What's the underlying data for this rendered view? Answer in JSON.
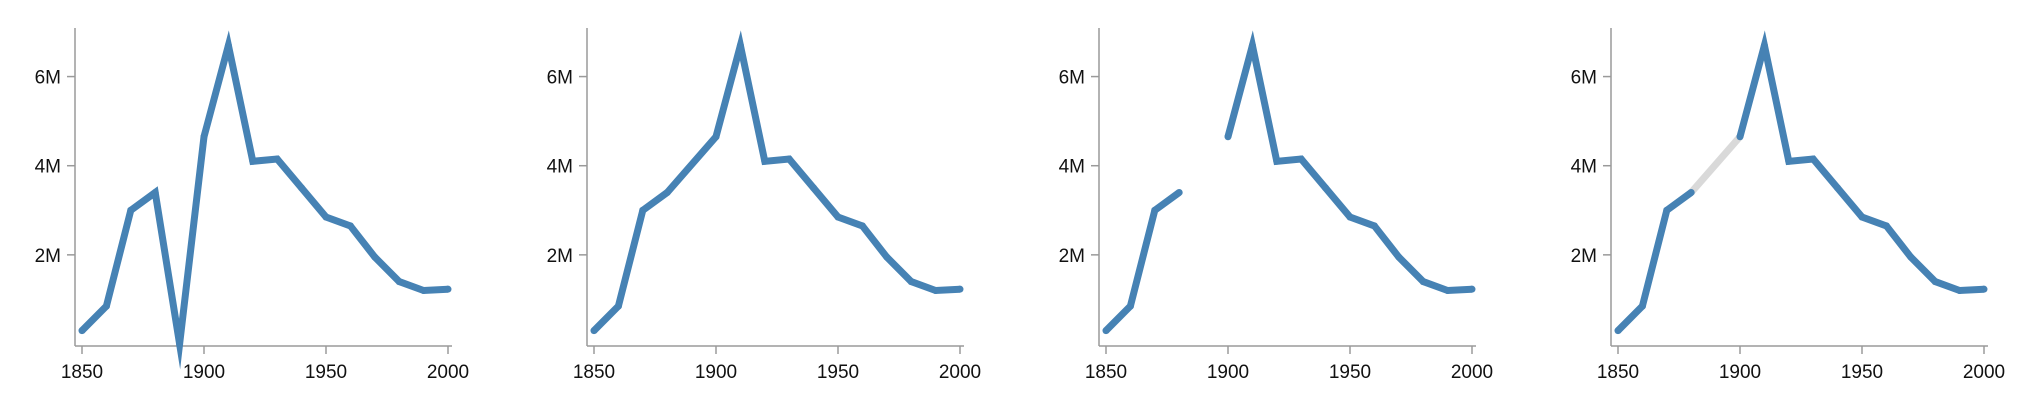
{
  "chart_data": [
    {
      "type": "line",
      "xlim": [
        1850,
        2000
      ],
      "ylim": [
        0,
        7000000
      ],
      "xticks": [
        {
          "value": 1850,
          "label": "1850"
        },
        {
          "value": 1900,
          "label": "1900"
        },
        {
          "value": 1950,
          "label": "1950"
        },
        {
          "value": 2000,
          "label": "2000"
        }
      ],
      "yticks": [
        {
          "value": 2000000,
          "label": "2M"
        },
        {
          "value": 4000000,
          "label": "4M"
        },
        {
          "value": 6000000,
          "label": "6M"
        }
      ],
      "grid": false,
      "series": [
        {
          "color": "#4682b4",
          "x": [
            1850,
            1860,
            1870,
            1880,
            1890,
            1900,
            1910,
            1920,
            1930,
            1940,
            1950,
            1960,
            1970,
            1980,
            1990,
            2000
          ],
          "y": [
            300000,
            850000,
            3000000,
            3400000,
            0,
            4650000,
            6700000,
            4100000,
            4150000,
            3500000,
            2850000,
            2650000,
            1950000,
            1400000,
            1200000,
            1230000
          ]
        }
      ]
    },
    {
      "type": "line",
      "xlim": [
        1850,
        2000
      ],
      "ylim": [
        0,
        7000000
      ],
      "xticks": [
        {
          "value": 1850,
          "label": "1850"
        },
        {
          "value": 1900,
          "label": "1900"
        },
        {
          "value": 1950,
          "label": "1950"
        },
        {
          "value": 2000,
          "label": "2000"
        }
      ],
      "yticks": [
        {
          "value": 2000000,
          "label": "2M"
        },
        {
          "value": 4000000,
          "label": "4M"
        },
        {
          "value": 6000000,
          "label": "6M"
        }
      ],
      "grid": false,
      "series": [
        {
          "color": "#4682b4",
          "x": [
            1850,
            1860,
            1870,
            1880,
            1900,
            1910,
            1920,
            1930,
            1940,
            1950,
            1960,
            1970,
            1980,
            1990,
            2000
          ],
          "y": [
            300000,
            850000,
            3000000,
            3400000,
            4650000,
            6700000,
            4100000,
            4150000,
            3500000,
            2850000,
            2650000,
            1950000,
            1400000,
            1200000,
            1230000
          ]
        }
      ]
    },
    {
      "type": "line",
      "xlim": [
        1850,
        2000
      ],
      "ylim": [
        0,
        7000000
      ],
      "xticks": [
        {
          "value": 1850,
          "label": "1850"
        },
        {
          "value": 1900,
          "label": "1900"
        },
        {
          "value": 1950,
          "label": "1950"
        },
        {
          "value": 2000,
          "label": "2000"
        }
      ],
      "yticks": [
        {
          "value": 2000000,
          "label": "2M"
        },
        {
          "value": 4000000,
          "label": "4M"
        },
        {
          "value": 6000000,
          "label": "6M"
        }
      ],
      "grid": false,
      "series": [
        {
          "color": "#4682b4",
          "x": [
            1850,
            1860,
            1870,
            1880,
            1890,
            1900,
            1910,
            1920,
            1930,
            1940,
            1950,
            1960,
            1970,
            1980,
            1990,
            2000
          ],
          "y": [
            300000,
            850000,
            3000000,
            3400000,
            null,
            4650000,
            6700000,
            4100000,
            4150000,
            3500000,
            2850000,
            2650000,
            1950000,
            1400000,
            1200000,
            1230000
          ]
        }
      ]
    },
    {
      "type": "line",
      "xlim": [
        1850,
        2000
      ],
      "ylim": [
        0,
        7000000
      ],
      "xticks": [
        {
          "value": 1850,
          "label": "1850"
        },
        {
          "value": 1900,
          "label": "1900"
        },
        {
          "value": 1950,
          "label": "1950"
        },
        {
          "value": 2000,
          "label": "2000"
        }
      ],
      "yticks": [
        {
          "value": 2000000,
          "label": "2M"
        },
        {
          "value": 4000000,
          "label": "4M"
        },
        {
          "value": 6000000,
          "label": "6M"
        }
      ],
      "grid": false,
      "gap_fill_color": "#d9d9d9",
      "series": [
        {
          "color": "#4682b4",
          "x": [
            1850,
            1860,
            1870,
            1880,
            1890,
            1900,
            1910,
            1920,
            1930,
            1940,
            1950,
            1960,
            1970,
            1980,
            1990,
            2000
          ],
          "y": [
            300000,
            850000,
            3000000,
            3400000,
            null,
            4650000,
            6700000,
            4100000,
            4150000,
            3500000,
            2850000,
            2650000,
            1950000,
            1400000,
            1200000,
            1230000
          ]
        }
      ]
    }
  ]
}
